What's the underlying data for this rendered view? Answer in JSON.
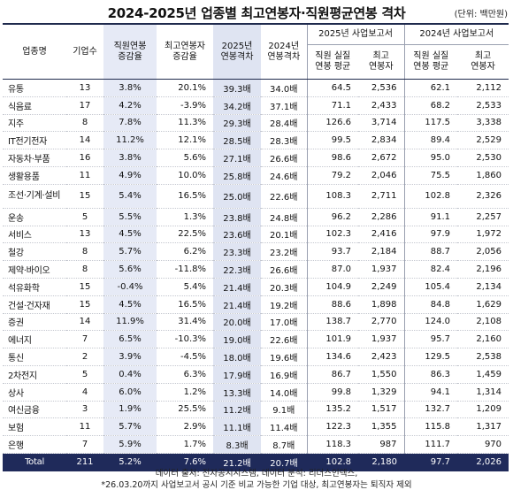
{
  "title": "2024-2025년 업종별 최고연봉자·직원평균연봉 격차",
  "unit": "(단위: 백만원)",
  "headers": {
    "industry": "업종명",
    "companies": "기업수",
    "emp_change": "직원연봉\n증감율",
    "top_change": "최고연봉자\n증감율",
    "gap_2025": "2025년\n연봉격차",
    "gap_2024": "2024년\n연봉격차",
    "group_2025": "2025년  사업보고서",
    "group_2024": "2024년  사업보고서",
    "emp_avg": "직원 실질\n연봉 평균",
    "top_earner": "최고\n연봉자"
  },
  "rows": [
    {
      "name": "유통",
      "n": "13",
      "ec": "3.8%",
      "tc": "20.1%",
      "g25": "39.3배",
      "g24": "34.0배",
      "e25": "64.5",
      "t25": "2,536",
      "e24": "62.1",
      "t24": "2,112"
    },
    {
      "name": "식음료",
      "n": "17",
      "ec": "4.2%",
      "tc": "-3.9%",
      "g25": "34.2배",
      "g24": "37.1배",
      "e25": "71.1",
      "t25": "2,433",
      "e24": "68.2",
      "t24": "2,533"
    },
    {
      "name": "지주",
      "n": "8",
      "ec": "7.8%",
      "tc": "11.3%",
      "g25": "29.3배",
      "g24": "28.4배",
      "e25": "126.6",
      "t25": "3,714",
      "e24": "117.5",
      "t24": "3,338"
    },
    {
      "name": "IT전기전자",
      "n": "14",
      "ec": "11.2%",
      "tc": "12.1%",
      "g25": "28.5배",
      "g24": "28.3배",
      "e25": "99.5",
      "t25": "2,834",
      "e24": "89.4",
      "t24": "2,529"
    },
    {
      "name": "자동차·부품",
      "n": "16",
      "ec": "3.8%",
      "tc": "5.6%",
      "g25": "27.1배",
      "g24": "26.6배",
      "e25": "98.6",
      "t25": "2,672",
      "e24": "95.0",
      "t24": "2,530"
    },
    {
      "name": "생활용품",
      "n": "11",
      "ec": "4.9%",
      "tc": "10.0%",
      "g25": "25.8배",
      "g24": "24.6배",
      "e25": "79.2",
      "t25": "2,046",
      "e24": "75.5",
      "t24": "1,860"
    },
    {
      "name": "조선·기계·설비",
      "n": "15",
      "ec": "5.4%",
      "tc": "16.5%",
      "g25": "25.0배",
      "g24": "22.6배",
      "e25": "108.3",
      "t25": "2,711",
      "e24": "102.8",
      "t24": "2,326",
      "two": true
    },
    {
      "name": "운송",
      "n": "5",
      "ec": "5.5%",
      "tc": "1.3%",
      "g25": "23.8배",
      "g24": "24.8배",
      "e25": "96.2",
      "t25": "2,286",
      "e24": "91.1",
      "t24": "2,257"
    },
    {
      "name": "서비스",
      "n": "13",
      "ec": "4.5%",
      "tc": "22.5%",
      "g25": "23.6배",
      "g24": "20.1배",
      "e25": "102.3",
      "t25": "2,416",
      "e24": "97.9",
      "t24": "1,972"
    },
    {
      "name": "철강",
      "n": "8",
      "ec": "5.7%",
      "tc": "6.2%",
      "g25": "23.3배",
      "g24": "23.2배",
      "e25": "93.7",
      "t25": "2,184",
      "e24": "88.7",
      "t24": "2,056"
    },
    {
      "name": "제약·바이오",
      "n": "8",
      "ec": "5.6%",
      "tc": "-11.8%",
      "g25": "22.3배",
      "g24": "26.6배",
      "e25": "87.0",
      "t25": "1,937",
      "e24": "82.4",
      "t24": "2,196"
    },
    {
      "name": "석유화학",
      "n": "15",
      "ec": "-0.4%",
      "tc": "5.4%",
      "g25": "21.4배",
      "g24": "20.3배",
      "e25": "104.9",
      "t25": "2,249",
      "e24": "105.4",
      "t24": "2,134"
    },
    {
      "name": "건설·건자재",
      "n": "15",
      "ec": "4.5%",
      "tc": "16.5%",
      "g25": "21.4배",
      "g24": "19.2배",
      "e25": "88.6",
      "t25": "1,898",
      "e24": "84.8",
      "t24": "1,629"
    },
    {
      "name": "증권",
      "n": "14",
      "ec": "11.9%",
      "tc": "31.4%",
      "g25": "20.0배",
      "g24": "17.0배",
      "e25": "138.7",
      "t25": "2,770",
      "e24": "124.0",
      "t24": "2,108"
    },
    {
      "name": "에너지",
      "n": "7",
      "ec": "6.5%",
      "tc": "-10.3%",
      "g25": "19.0배",
      "g24": "22.6배",
      "e25": "101.9",
      "t25": "1,937",
      "e24": "95.7",
      "t24": "2,160"
    },
    {
      "name": "통신",
      "n": "2",
      "ec": "3.9%",
      "tc": "-4.5%",
      "g25": "18.0배",
      "g24": "19.6배",
      "e25": "134.6",
      "t25": "2,423",
      "e24": "129.5",
      "t24": "2,538"
    },
    {
      "name": "2차전지",
      "n": "5",
      "ec": "0.4%",
      "tc": "6.3%",
      "g25": "17.9배",
      "g24": "16.9배",
      "e25": "86.7",
      "t25": "1,550",
      "e24": "86.3",
      "t24": "1,459"
    },
    {
      "name": "상사",
      "n": "4",
      "ec": "6.0%",
      "tc": "1.2%",
      "g25": "13.3배",
      "g24": "14.0배",
      "e25": "99.8",
      "t25": "1,329",
      "e24": "94.1",
      "t24": "1,314"
    },
    {
      "name": "여신금융",
      "n": "3",
      "ec": "1.9%",
      "tc": "25.5%",
      "g25": "11.2배",
      "g24": "9.1배",
      "e25": "135.2",
      "t25": "1,517",
      "e24": "132.7",
      "t24": "1,209"
    },
    {
      "name": "보험",
      "n": "11",
      "ec": "5.7%",
      "tc": "2.9%",
      "g25": "11.1배",
      "g24": "11.4배",
      "e25": "122.3",
      "t25": "1,355",
      "e24": "115.8",
      "t24": "1,317"
    },
    {
      "name": "은행",
      "n": "7",
      "ec": "5.9%",
      "tc": "1.7%",
      "g25": "8.3배",
      "g24": "8.7배",
      "e25": "118.3",
      "t25": "987",
      "e24": "111.7",
      "t24": "970"
    }
  ],
  "total": {
    "name": "Total",
    "n": "211",
    "ec": "5.2%",
    "tc": "7.6%",
    "g25": "21.2배",
    "g24": "20.7배",
    "e25": "102.8",
    "t25": "2,180",
    "e24": "97.7",
    "t24": "2,026"
  },
  "notes": [
    "데이터 출처: 전자공시시스템, 데이터 분석: 리더스인덱스,",
    "*26.03.20까지 사업보고서 공시 기준 비교 가능한 기업 대상, 최고연봉자는 퇴직자 제외"
  ]
}
